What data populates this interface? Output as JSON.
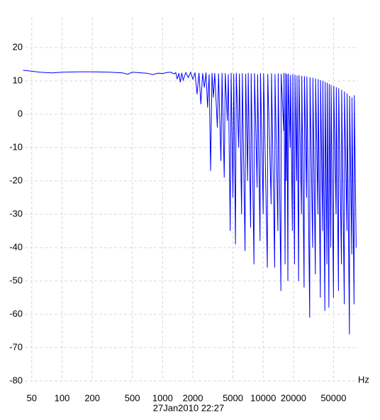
{
  "chart_data": {
    "type": "line",
    "x_label": "Hz",
    "footer": "27Jan2010  22:27",
    "x_scale": "log",
    "grid": true,
    "xlim": [
      40,
      110000
    ],
    "ylim": [
      -80,
      30
    ],
    "xticks": [
      50,
      100,
      200,
      500,
      1000,
      2000,
      5000,
      10000,
      20000,
      50000
    ],
    "yticks": [
      -80,
      -70,
      -60,
      -50,
      -40,
      -30,
      -20,
      -10,
      0,
      10,
      20
    ],
    "x": [
      41,
      50,
      60,
      80,
      100,
      150,
      200,
      300,
      400,
      450,
      500,
      700,
      800,
      900,
      1000,
      1100,
      1200,
      1300,
      1350,
      1400,
      1450,
      1500,
      1550,
      1600,
      1700,
      1800,
      1900,
      2000,
      2100,
      2200,
      2300,
      2400,
      2500,
      2600,
      2700,
      2800,
      2900,
      3000,
      3100,
      3200,
      3300,
      3500,
      3600,
      3800,
      3900,
      4100,
      4200,
      4400,
      4500,
      4700,
      4800,
      5000,
      5100,
      5300,
      5400,
      5700,
      5800,
      6100,
      6200,
      6600,
      6700,
      7000,
      7100,
      7500,
      7600,
      8100,
      8200,
      8700,
      8800,
      9300,
      9400,
      10000,
      10100,
      11000,
      11100,
      12000,
      12100,
      13000,
      13100,
      14000,
      14100,
      15000,
      15100,
      16000,
      16100,
      16500,
      16700,
      17000,
      17200,
      17600,
      17800,
      18500,
      18700,
      19500,
      19700,
      20500,
      20700,
      21500,
      21700,
      22500,
      22700,
      24000,
      24200,
      25500,
      25700,
      27000,
      27200,
      29000,
      29200,
      31000,
      31200,
      33000,
      33200,
      35000,
      35200,
      37000,
      37200,
      39000,
      39200,
      41000,
      41300,
      43000,
      43300,
      45000,
      45300,
      47000,
      47300,
      50000,
      50300,
      53000,
      53300,
      56000,
      56300,
      60000,
      60300,
      64000,
      64300,
      68000,
      68300,
      72000,
      72300,
      76000,
      76300,
      80000,
      80500,
      84000
    ],
    "series": [
      {
        "color": "#0000ff",
        "values": [
          13.2,
          12.9,
          12.6,
          12.4,
          12.6,
          12.7,
          12.7,
          12.6,
          12.4,
          12.0,
          12.6,
          12.3,
          11.9,
          12.3,
          12.2,
          12.5,
          12.6,
          12.1,
          12.5,
          10.5,
          12.3,
          9.6,
          12.4,
          10.2,
          12.5,
          11,
          12.6,
          10.5,
          12.5,
          6,
          12.4,
          3,
          12.3,
          8,
          12.5,
          2,
          12,
          -17,
          12.4,
          5,
          12.3,
          -4,
          12.2,
          -14,
          12.4,
          -19,
          12.3,
          -2,
          12,
          -35,
          12.4,
          -25,
          12.1,
          -39,
          12.4,
          -10,
          12.2,
          -30,
          12.3,
          -41,
          12.1,
          -20,
          12.4,
          -34,
          12.2,
          -45,
          12.3,
          -22,
          12,
          -38,
          12.3,
          -30,
          12.2,
          -46,
          12.1,
          -27,
          12.3,
          -46,
          12,
          -35,
          12.2,
          -53,
          12.1,
          -5,
          12.4,
          -45,
          12.3,
          -20,
          12,
          -50,
          12.2,
          -10,
          11.8,
          -35,
          12,
          -45,
          11.8,
          -20,
          11.6,
          -50,
          11.7,
          -30,
          11.5,
          -52,
          11.4,
          -25,
          11.3,
          -61,
          11.1,
          -40,
          10.9,
          -48,
          10.7,
          -30,
          10.5,
          -55,
          10.2,
          -35,
          10,
          -59,
          9.7,
          -45,
          9.4,
          -58,
          9.1,
          -40,
          8.8,
          -55,
          8.5,
          -30,
          8.1,
          -53,
          7.8,
          -45,
          7.3,
          -57,
          6.8,
          -35,
          6.2,
          -66,
          5.5,
          -42,
          5,
          -57,
          5.7,
          -40
        ]
      }
    ]
  }
}
